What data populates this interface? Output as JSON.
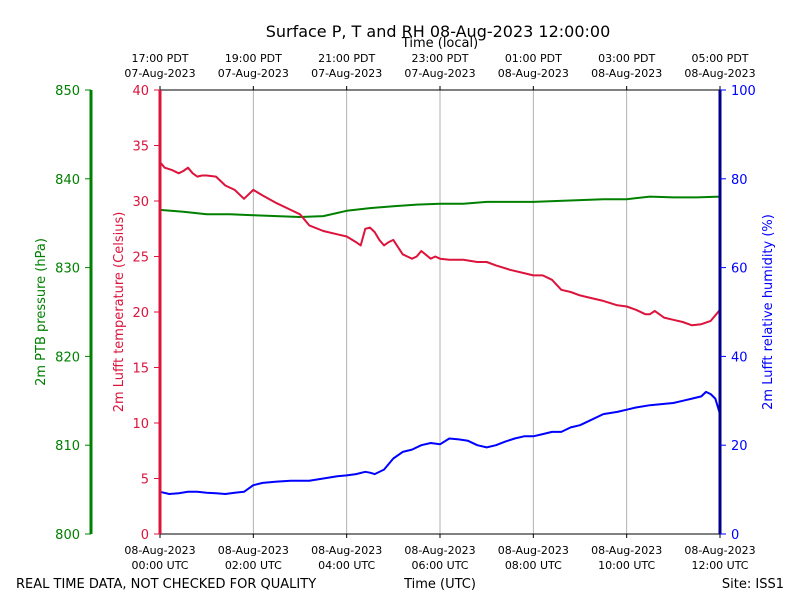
{
  "chart_data": {
    "type": "line",
    "title": "Surface P, T and RH 08-Aug-2023 12:00:00",
    "top_axis_label": "Time (local)",
    "xlabel": "Time (UTC)",
    "footer_left": "REAL TIME DATA, NOT CHECKED FOR QUALITY",
    "footer_right": "Site: ISS1",
    "xlim": [
      0,
      12
    ],
    "x_ticks": [
      {
        "x": 0,
        "line1": "08-Aug-2023",
        "line2": "00:00 UTC"
      },
      {
        "x": 2,
        "line1": "08-Aug-2023",
        "line2": "02:00 UTC"
      },
      {
        "x": 4,
        "line1": "08-Aug-2023",
        "line2": "04:00 UTC"
      },
      {
        "x": 6,
        "line1": "08-Aug-2023",
        "line2": "06:00 UTC"
      },
      {
        "x": 8,
        "line1": "08-Aug-2023",
        "line2": "08:00 UTC"
      },
      {
        "x": 10,
        "line1": "08-Aug-2023",
        "line2": "10:00 UTC"
      },
      {
        "x": 12,
        "line1": "08-Aug-2023",
        "line2": "12:00 UTC"
      }
    ],
    "top_ticks": [
      {
        "x": 0,
        "line1": "17:00 PDT",
        "line2": "07-Aug-2023"
      },
      {
        "x": 2,
        "line1": "19:00 PDT",
        "line2": "07-Aug-2023"
      },
      {
        "x": 4,
        "line1": "21:00 PDT",
        "line2": "07-Aug-2023"
      },
      {
        "x": 6,
        "line1": "23:00 PDT",
        "line2": "07-Aug-2023"
      },
      {
        "x": 8,
        "line1": "01:00 PDT",
        "line2": "08-Aug-2023"
      },
      {
        "x": 10,
        "line1": "03:00 PDT",
        "line2": "08-Aug-2023"
      },
      {
        "x": 12,
        "line1": "05:00 PDT",
        "line2": "08-Aug-2023"
      }
    ],
    "axes": {
      "pressure": {
        "label": "2m PTB pressure (hPa)",
        "range": [
          800,
          850
        ],
        "ticks": [
          800,
          810,
          820,
          830,
          840,
          850
        ],
        "color": "#008000"
      },
      "temperature": {
        "label": "2m Lufft temperature (Celsius)",
        "range": [
          0,
          40
        ],
        "ticks": [
          0,
          5,
          10,
          15,
          20,
          25,
          30,
          35,
          40
        ],
        "color": "#dc143c"
      },
      "humidity": {
        "label": "2m Lufft relative humidity (%)",
        "range": [
          0,
          100
        ],
        "ticks": [
          0,
          20,
          40,
          60,
          80,
          100
        ],
        "color": "#0000ff"
      }
    },
    "series": [
      {
        "name": "Pressure",
        "axis": "pressure",
        "color": "#008000",
        "x": [
          0,
          0.5,
          1,
          1.5,
          2,
          2.5,
          3,
          3.5,
          4,
          4.5,
          5,
          5.5,
          6,
          6.5,
          7,
          7.5,
          8,
          8.5,
          9,
          9.5,
          10,
          10.5,
          11,
          11.5,
          12
        ],
        "y": [
          836.5,
          836.3,
          836.0,
          836.0,
          835.9,
          835.8,
          835.7,
          835.8,
          836.4,
          836.7,
          836.9,
          837.1,
          837.2,
          837.2,
          837.4,
          837.4,
          837.4,
          837.5,
          837.6,
          837.7,
          837.7,
          838.0,
          837.9,
          837.9,
          838.0
        ]
      },
      {
        "name": "Temperature",
        "axis": "temperature",
        "color": "#dc143c",
        "x": [
          0,
          0.1,
          0.25,
          0.4,
          0.5,
          0.6,
          0.7,
          0.8,
          0.9,
          1.0,
          1.2,
          1.4,
          1.6,
          1.8,
          2.0,
          2.2,
          2.5,
          2.8,
          3.0,
          3.2,
          3.5,
          3.8,
          4.0,
          4.2,
          4.3,
          4.4,
          4.5,
          4.6,
          4.7,
          4.8,
          4.9,
          5.0,
          5.2,
          5.3,
          5.4,
          5.5,
          5.6,
          5.8,
          5.9,
          6.0,
          6.2,
          6.5,
          6.8,
          7.0,
          7.2,
          7.5,
          7.8,
          8.0,
          8.2,
          8.4,
          8.6,
          8.8,
          9.0,
          9.2,
          9.5,
          9.8,
          10.0,
          10.2,
          10.4,
          10.5,
          10.6,
          10.8,
          11.0,
          11.2,
          11.4,
          11.6,
          11.8,
          12.0
        ],
        "y": [
          33.5,
          33.0,
          32.8,
          32.5,
          32.7,
          33.0,
          32.5,
          32.2,
          32.3,
          32.3,
          32.2,
          31.4,
          31.0,
          30.2,
          31.0,
          30.5,
          29.8,
          29.2,
          28.8,
          27.8,
          27.3,
          27.0,
          26.8,
          26.3,
          26.0,
          27.5,
          27.6,
          27.2,
          26.5,
          26.0,
          26.3,
          26.5,
          25.2,
          25.0,
          24.8,
          25.0,
          25.5,
          24.8,
          25.0,
          24.8,
          24.7,
          24.7,
          24.5,
          24.5,
          24.2,
          23.8,
          23.5,
          23.3,
          23.3,
          22.9,
          22.0,
          21.8,
          21.5,
          21.3,
          21.0,
          20.6,
          20.5,
          20.2,
          19.8,
          19.8,
          20.1,
          19.5,
          19.3,
          19.1,
          18.8,
          18.9,
          19.2,
          20.2
        ]
      },
      {
        "name": "Relative humidity",
        "axis": "humidity",
        "color": "#0000ff",
        "x": [
          0,
          0.2,
          0.4,
          0.6,
          0.8,
          1.0,
          1.2,
          1.4,
          1.6,
          1.8,
          2.0,
          2.2,
          2.5,
          2.8,
          3.0,
          3.2,
          3.5,
          3.8,
          4.0,
          4.2,
          4.4,
          4.5,
          4.6,
          4.8,
          5.0,
          5.2,
          5.4,
          5.6,
          5.8,
          6.0,
          6.2,
          6.4,
          6.6,
          6.8,
          7.0,
          7.2,
          7.4,
          7.6,
          7.8,
          8.0,
          8.2,
          8.4,
          8.6,
          8.8,
          9.0,
          9.2,
          9.5,
          9.8,
          10.0,
          10.2,
          10.5,
          10.8,
          11.0,
          11.2,
          11.4,
          11.6,
          11.7,
          11.8,
          11.9,
          12.0
        ],
        "y": [
          9.5,
          9.0,
          9.2,
          9.5,
          9.5,
          9.3,
          9.2,
          9.0,
          9.3,
          9.5,
          11.0,
          11.5,
          11.8,
          12.0,
          12.0,
          12.0,
          12.5,
          13.0,
          13.2,
          13.5,
          14.0,
          13.8,
          13.5,
          14.5,
          17.0,
          18.5,
          19.0,
          20.0,
          20.5,
          20.2,
          21.5,
          21.3,
          21.0,
          20.0,
          19.5,
          20.0,
          20.8,
          21.5,
          22.0,
          22.0,
          22.5,
          23.0,
          23.0,
          24.0,
          24.5,
          25.5,
          27.0,
          27.5,
          28.0,
          28.5,
          29.0,
          29.3,
          29.5,
          30.0,
          30.5,
          31.0,
          32.0,
          31.5,
          30.5,
          27.0
        ]
      }
    ]
  }
}
